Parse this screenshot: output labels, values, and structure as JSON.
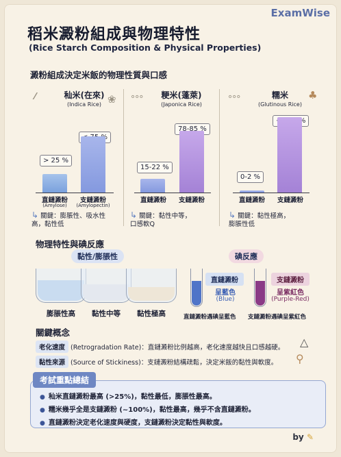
{
  "brand": "ExamWise",
  "title": "稻米澱粉組成與物理特性",
  "subtitle": "(Rice Starch Composition & Physical Properties)",
  "section1_title": "澱粉組成決定米飯的物理性質與口感",
  "rice": [
    {
      "name": "秈米(在來)",
      "english": "(Indica Rice)",
      "amylose_label": "> 25 %",
      "amylopectin_label": "< 75 %",
      "bar1": "直鏈澱粉",
      "bar1_sub": "(Amylose)",
      "bar2": "支鏈澱粉",
      "bar2_sub": "(Amylopectin)",
      "key": "關鍵：膨脹性、吸水性\n高，黏性低"
    },
    {
      "name": "粳米(蓬萊)",
      "english": "(Japonica Rice)",
      "amylose_label": "15-22 %",
      "amylopectin_label": "78-85 %",
      "bar1": "直鏈澱粉",
      "bar2": "支鏈澱粉",
      "key": "關鍵：黏性中等，\n口感軟Q"
    },
    {
      "name": "糯米",
      "english": "(Glutinous Rice)",
      "amylose_label": "0-2 %",
      "amylopectin_label": "~ 100 %",
      "bar1": "直鏈澱粉",
      "bar2": "支鏈澱粉",
      "key": "關鍵：黏性極高，\n膨脹性低"
    }
  ],
  "chart_data": [
    {
      "type": "bar",
      "title": "秈米(在來)",
      "categories": [
        "直鏈澱粉",
        "支鏈澱粉"
      ],
      "values": [
        25,
        75
      ]
    },
    {
      "type": "bar",
      "title": "粳米(蓬萊)",
      "categories": [
        "直鏈澱粉",
        "支鏈澱粉"
      ],
      "values": [
        18.5,
        81.5
      ]
    },
    {
      "type": "bar",
      "title": "糯米",
      "categories": [
        "直鏈澱粉",
        "支鏈澱粉"
      ],
      "values": [
        1,
        100
      ]
    }
  ],
  "section2_title": "物理特性與碘反應",
  "viscosity_pill": "黏性/膨脹性",
  "iodine_pill": "碘反應",
  "beakers": [
    "膨脹性高",
    "黏性中等",
    "黏性極高"
  ],
  "amylose_tag": "直鏈澱粉",
  "amylopectin_tag": "支鏈澱粉",
  "blue_text": "呈藍色",
  "blue_eng": "(Blue)",
  "purple_text": "呈紫紅色",
  "purple_eng": "(Purple-Red)",
  "react_blue": "直鏈澱粉遇碘呈藍色",
  "react_purple": "支鏈澱粉遇碘呈紫紅色",
  "concepts_title": "關鍵概念",
  "concept1_key": "老化速度",
  "concept1_text": "(Retrogradation Rate)：直鏈澱粉比例越高，老化速度越快且口感越硬。",
  "concept2_key": "黏性來源",
  "concept2_text": "(Source of Stickiness)：支鏈澱粉結構疏鬆，決定米飯的黏性與軟度。",
  "summary_title": "考試重點總結",
  "summary_items": [
    "秈米直鏈澱粉最高 (>25%)，黏性最低，膨脹性最高。",
    "糯米幾乎全是支鏈澱粉 (~100%)，黏性最高，幾乎不含直鏈澱粉。",
    "直鏈澱粉決定老化速度與硬度，支鏈澱粉決定黏性與軟度。"
  ],
  "by_label": "by",
  "colors": {
    "blue": "#7aa1dd",
    "purple": "#a482d6",
    "accent": "#6e87c3"
  }
}
